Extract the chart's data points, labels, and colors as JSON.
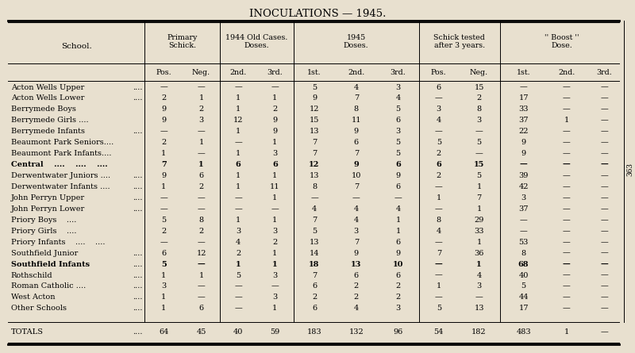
{
  "title": "INOCULATIONS — 1945.",
  "bg_color": "#e8e0cf",
  "schools": [
    "Acton Wells Upper    ....",
    "Acton Wells Lower    ....",
    "Berrymede Boys    ....",
    "Berrymede Girls ....    ....",
    "Berrymede Infants    ....",
    "Beaumont Park Seniors....",
    "Beaumont Park Infants....",
    "Central    ....    ....    ....",
    "Derwentwater Juniors ....",
    "Derwentwater Infants ....",
    "John Perryn Upper    ....",
    "John Perryn Lower    ....",
    "Priory Boys    ....    ....",
    "Priory Girls    ....    ....",
    "Priory Infants    ....    ....",
    "Southfield Junior    ....",
    "Southfield Infants",
    "Rothschild    ....",
    "Roman Catholic ....    ....",
    "West Acton    ....    ....",
    "Other Schools    ....    ....",
    "TOTALS    ...."
  ],
  "school_bold": [
    false,
    false,
    false,
    false,
    false,
    false,
    false,
    true,
    false,
    false,
    false,
    false,
    false,
    false,
    false,
    false,
    true,
    false,
    false,
    false,
    false,
    false
  ],
  "school_display": [
    "Acton Wells Upper",
    "Acton Wells Lower",
    "Berrymede Boys",
    "Berrymede Girls ....",
    "Berrymede Infants",
    "Beaumont Park Seniors....",
    "Beaumont Park Infants....",
    "Central    ....    ....    ....",
    "Derwentwater Juniors ....",
    "Derwentwater Infants ....",
    "John Perryn Upper",
    "John Perryn Lower",
    "Priory Boys    ....",
    "Priory Girls    ....",
    "Priory Infants    ....    ....",
    "Southfield Junior",
    "Southfield Infants",
    "Rothschild",
    "Roman Catholic ....",
    "West Acton",
    "Other Schools",
    "TOTALS"
  ],
  "school_dots": [
    "....",
    "....",
    "",
    "",
    "....",
    "",
    "",
    "",
    "....",
    "....",
    "....",
    "....",
    "",
    "",
    "",
    "....",
    "....",
    "....",
    "....",
    "....",
    "....",
    "...."
  ],
  "data": [
    [
      "—",
      "—",
      "—",
      "—",
      "5",
      "4",
      "3",
      "6",
      "15",
      "—",
      "—",
      "—"
    ],
    [
      "2",
      "1",
      "1",
      "1",
      "9",
      "7",
      "4",
      "—",
      "2",
      "17",
      "—",
      "—"
    ],
    [
      "9",
      "2",
      "1",
      "2",
      "12",
      "8",
      "5",
      "3",
      "8",
      "33",
      "—",
      "—"
    ],
    [
      "9",
      "3",
      "12",
      "9",
      "15",
      "11",
      "6",
      "4",
      "3",
      "37",
      "1",
      "—"
    ],
    [
      "—",
      "—",
      "1",
      "9",
      "13",
      "9",
      "3",
      "—",
      "—",
      "22",
      "—",
      "—"
    ],
    [
      "2",
      "1",
      "—",
      "1",
      "7",
      "6",
      "5",
      "5",
      "5",
      "9",
      "—",
      "—"
    ],
    [
      "1",
      "—",
      "1",
      "3",
      "7",
      "7",
      "5",
      "2",
      "—",
      "9",
      "—",
      "—"
    ],
    [
      "7",
      "1",
      "6",
      "6",
      "12",
      "9",
      "6",
      "6",
      "15",
      "—",
      "—",
      "—"
    ],
    [
      "9",
      "6",
      "1",
      "1",
      "13",
      "10",
      "9",
      "2",
      "5",
      "39",
      "—",
      "—"
    ],
    [
      "1",
      "2",
      "1",
      "11",
      "8",
      "7",
      "6",
      "—",
      "1",
      "42",
      "—",
      "—"
    ],
    [
      "—",
      "—",
      "—",
      "1",
      "—",
      "—",
      "—",
      "1",
      "7",
      "3",
      "—",
      "—"
    ],
    [
      "—",
      "—",
      "—",
      "—",
      "4",
      "4",
      "4",
      "—",
      "1",
      "37",
      "—",
      "—"
    ],
    [
      "5",
      "8",
      "1",
      "1",
      "7",
      "4",
      "1",
      "8",
      "29",
      "—",
      "—",
      "—"
    ],
    [
      "2",
      "2",
      "3",
      "3",
      "5",
      "3",
      "1",
      "4",
      "33",
      "—",
      "—",
      "—"
    ],
    [
      "—",
      "—",
      "4",
      "2",
      "13",
      "7",
      "6",
      "—",
      "1",
      "53",
      "—",
      "—"
    ],
    [
      "6",
      "12",
      "2",
      "1",
      "14",
      "9",
      "9",
      "7",
      "36",
      "8",
      "—",
      "—"
    ],
    [
      "5",
      "—",
      "1",
      "1",
      "18",
      "13",
      "10",
      "—",
      "1",
      "68",
      "—",
      "—"
    ],
    [
      "1",
      "1",
      "5",
      "3",
      "7",
      "6",
      "6",
      "—",
      "4",
      "40",
      "—",
      "—"
    ],
    [
      "3",
      "—",
      "—",
      "—",
      "6",
      "2",
      "2",
      "1",
      "3",
      "5",
      "—",
      "—"
    ],
    [
      "1",
      "—",
      "—",
      "3",
      "2",
      "2",
      "2",
      "—",
      "—",
      "44",
      "—",
      "—"
    ],
    [
      "1",
      "6",
      "—",
      "1",
      "6",
      "4",
      "3",
      "5",
      "13",
      "17",
      "—",
      "—"
    ],
    [
      "64",
      "45",
      "40",
      "59",
      "183",
      "132",
      "96",
      "54",
      "182",
      "483",
      "1",
      "—"
    ]
  ],
  "group_labels": [
    "Primary\nSchick.",
    "1944 Old Cases.\nDoses.",
    "1945\nDoses.",
    "Schick tested\nafter 3 years.",
    "'' Boost ''\nDose."
  ],
  "sub_headers": [
    "Pos.",
    "Neg.",
    "2nd.",
    "3rd.",
    "1st.",
    "2nd.",
    "3rd.",
    "Pos.",
    "Neg.",
    "1st.",
    "2nd.",
    "3rd."
  ],
  "page_number": "363"
}
